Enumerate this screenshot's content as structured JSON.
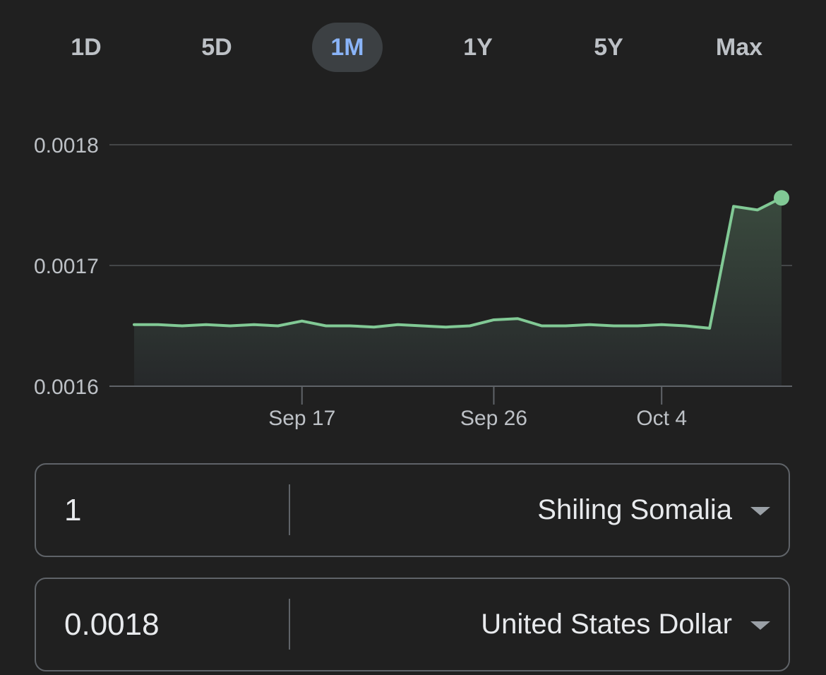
{
  "tabs": [
    {
      "label": "1D",
      "active": false
    },
    {
      "label": "5D",
      "active": false
    },
    {
      "label": "1M",
      "active": true
    },
    {
      "label": "1Y",
      "active": false
    },
    {
      "label": "5Y",
      "active": false
    },
    {
      "label": "Max",
      "active": false
    }
  ],
  "colors": {
    "line": "#81c995",
    "active_tab_text": "#8ab4f8",
    "active_tab_bg": "#3c4043",
    "gridline": "#3c4043"
  },
  "chart_data": {
    "type": "line",
    "y_ticks": [
      "0.0018",
      "0.0017",
      "0.0016"
    ],
    "y_tick_values": [
      0.0018,
      0.0017,
      0.0016
    ],
    "ylim": [
      0.0016,
      0.0018
    ],
    "x_ticks": [
      "Sep 17",
      "Sep 26",
      "Oct 4"
    ],
    "x_tick_indices": [
      7,
      15,
      22
    ],
    "grid": true,
    "series": [
      {
        "values": [
          0.001651,
          0.001651,
          0.00165,
          0.001651,
          0.00165,
          0.001651,
          0.00165,
          0.001654,
          0.00165,
          0.00165,
          0.001649,
          0.001651,
          0.00165,
          0.001649,
          0.00165,
          0.001655,
          0.001656,
          0.00165,
          0.00165,
          0.001651,
          0.00165,
          0.00165,
          0.001651,
          0.00165,
          0.001648,
          0.001749,
          0.001746,
          0.001756
        ]
      }
    ]
  },
  "converter": {
    "from": {
      "value": "1",
      "currency": "Shiling Somalia"
    },
    "to": {
      "value": "0.0018",
      "currency": "United States Dollar"
    }
  }
}
